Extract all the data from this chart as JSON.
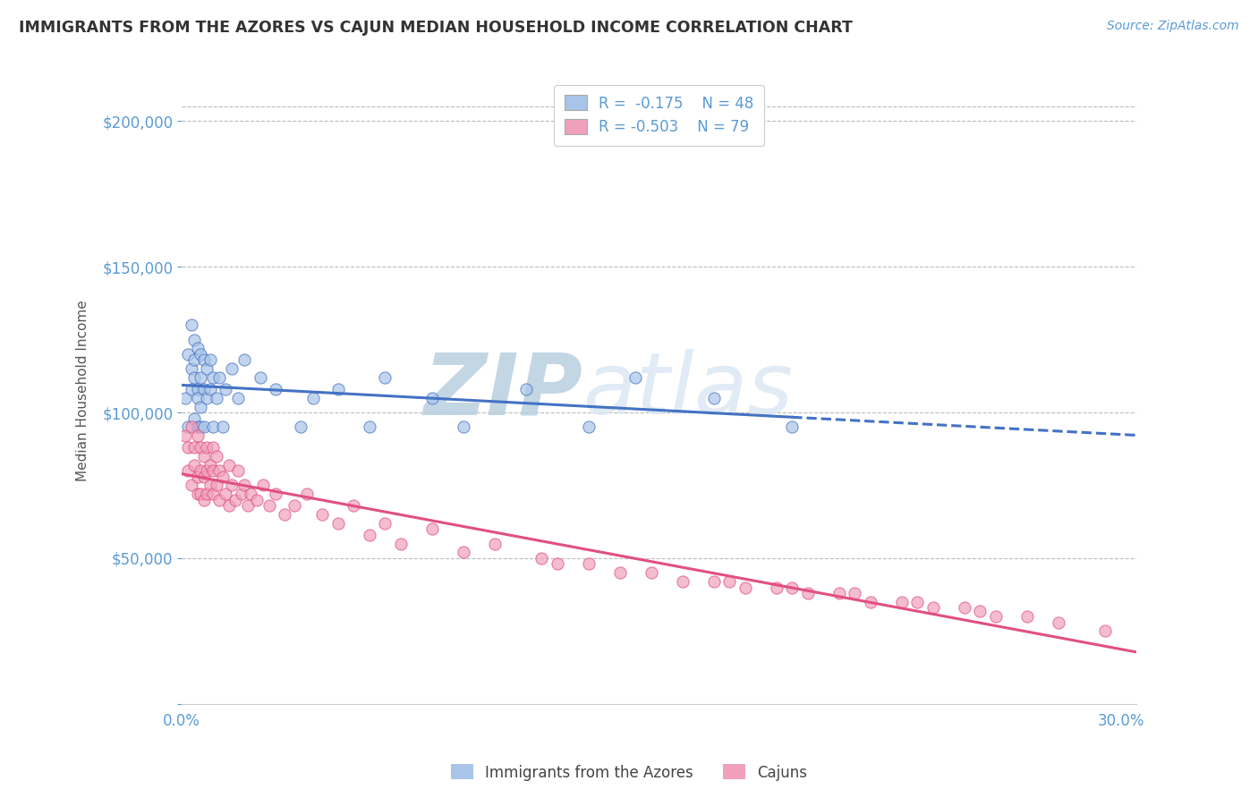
{
  "title": "IMMIGRANTS FROM THE AZORES VS CAJUN MEDIAN HOUSEHOLD INCOME CORRELATION CHART",
  "source_text": "Source: ZipAtlas.com",
  "ylabel": "Median Household Income",
  "xlim": [
    0.0,
    0.305
  ],
  "ylim": [
    0,
    215000
  ],
  "yticks": [
    0,
    50000,
    100000,
    150000,
    200000
  ],
  "ytick_labels": [
    "",
    "$50,000",
    "$100,000",
    "$150,000",
    "$200,000"
  ],
  "xticks": [
    0.0,
    0.05,
    0.1,
    0.15,
    0.2,
    0.25,
    0.3
  ],
  "xtick_labels": [
    "0.0%",
    "",
    "",
    "",
    "",
    "",
    "30.0%"
  ],
  "blue_color": "#a8c4e8",
  "pink_color": "#f0a0bb",
  "blue_line_color": "#4472C4",
  "pink_line_color": "#E05080",
  "axis_color": "#5B9BD5",
  "grid_color": "#bbbbbb",
  "watermark_zip_color": "#c8d8ec",
  "watermark_atlas_color": "#dce8f4",
  "legend_label1": "Immigrants from the Azores",
  "legend_label2": "Cajuns",
  "blue_scatter_x": [
    0.001,
    0.002,
    0.002,
    0.003,
    0.003,
    0.003,
    0.004,
    0.004,
    0.004,
    0.004,
    0.005,
    0.005,
    0.005,
    0.005,
    0.006,
    0.006,
    0.006,
    0.006,
    0.007,
    0.007,
    0.007,
    0.008,
    0.008,
    0.009,
    0.009,
    0.01,
    0.01,
    0.011,
    0.012,
    0.013,
    0.014,
    0.016,
    0.018,
    0.02,
    0.025,
    0.03,
    0.038,
    0.042,
    0.05,
    0.06,
    0.065,
    0.08,
    0.09,
    0.11,
    0.13,
    0.145,
    0.17,
    0.195
  ],
  "blue_scatter_y": [
    105000,
    120000,
    95000,
    115000,
    130000,
    108000,
    125000,
    112000,
    98000,
    118000,
    108000,
    122000,
    95000,
    105000,
    120000,
    95000,
    112000,
    102000,
    108000,
    118000,
    95000,
    115000,
    105000,
    108000,
    118000,
    112000,
    95000,
    105000,
    112000,
    95000,
    108000,
    115000,
    105000,
    118000,
    112000,
    108000,
    95000,
    105000,
    108000,
    95000,
    112000,
    105000,
    95000,
    108000,
    95000,
    112000,
    105000,
    95000
  ],
  "pink_scatter_x": [
    0.001,
    0.002,
    0.002,
    0.003,
    0.003,
    0.004,
    0.004,
    0.005,
    0.005,
    0.005,
    0.006,
    0.006,
    0.006,
    0.007,
    0.007,
    0.007,
    0.008,
    0.008,
    0.008,
    0.009,
    0.009,
    0.01,
    0.01,
    0.01,
    0.011,
    0.011,
    0.012,
    0.012,
    0.013,
    0.014,
    0.015,
    0.015,
    0.016,
    0.017,
    0.018,
    0.019,
    0.02,
    0.021,
    0.022,
    0.024,
    0.026,
    0.028,
    0.03,
    0.033,
    0.036,
    0.04,
    0.045,
    0.05,
    0.055,
    0.06,
    0.065,
    0.07,
    0.08,
    0.09,
    0.1,
    0.115,
    0.13,
    0.15,
    0.17,
    0.19,
    0.21,
    0.23,
    0.25,
    0.27,
    0.12,
    0.14,
    0.16,
    0.18,
    0.2,
    0.22,
    0.24,
    0.26,
    0.28,
    0.295,
    0.195,
    0.215,
    0.235,
    0.255,
    0.175
  ],
  "pink_scatter_y": [
    92000,
    88000,
    80000,
    95000,
    75000,
    88000,
    82000,
    78000,
    92000,
    72000,
    88000,
    80000,
    72000,
    85000,
    78000,
    70000,
    88000,
    80000,
    72000,
    82000,
    75000,
    88000,
    80000,
    72000,
    85000,
    75000,
    80000,
    70000,
    78000,
    72000,
    82000,
    68000,
    75000,
    70000,
    80000,
    72000,
    75000,
    68000,
    72000,
    70000,
    75000,
    68000,
    72000,
    65000,
    68000,
    72000,
    65000,
    62000,
    68000,
    58000,
    62000,
    55000,
    60000,
    52000,
    55000,
    50000,
    48000,
    45000,
    42000,
    40000,
    38000,
    35000,
    33000,
    30000,
    48000,
    45000,
    42000,
    40000,
    38000,
    35000,
    33000,
    30000,
    28000,
    25000,
    40000,
    38000,
    35000,
    32000,
    42000
  ]
}
